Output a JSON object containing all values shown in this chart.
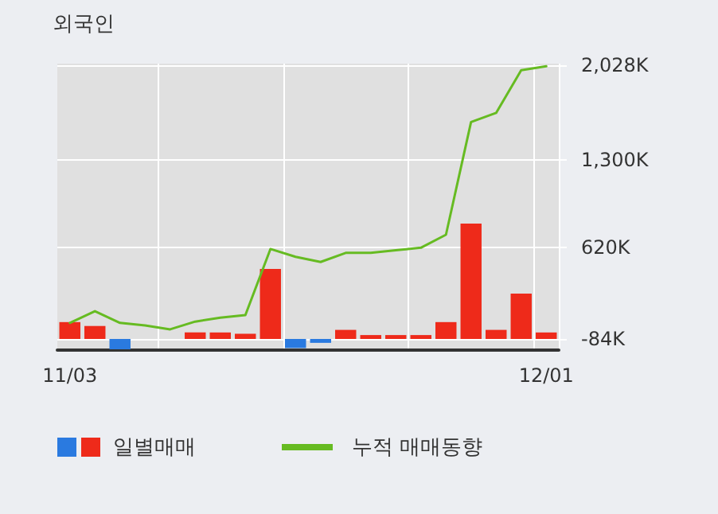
{
  "chart_data": {
    "type": "bar",
    "title": "외국인",
    "categories": [
      "11/03",
      null,
      null,
      null,
      null,
      null,
      null,
      null,
      null,
      null,
      null,
      null,
      null,
      null,
      null,
      null,
      null,
      null,
      null,
      "12/01"
    ],
    "series": [
      {
        "name": "일별매매",
        "colors": [
          "#ee2a1a",
          "#ee2a1a",
          "#2a7ae0",
          "#ee2a1a",
          "#ee2a1a",
          "#ee2a1a",
          "#ee2a1a",
          "#ee2a1a",
          "#ee2a1a",
          "#2a7ae0",
          "#2a7ae0",
          "#ee2a1a",
          "#ee2a1a",
          "#ee2a1a",
          "#ee2a1a",
          "#ee2a1a",
          "#ee2a1a",
          "#ee2a1a",
          "#ee2a1a",
          "#ee2a1a"
        ],
        "base": [
          -84,
          -84,
          -84,
          null,
          null,
          -84,
          -84,
          -84,
          -84,
          -84,
          -84,
          -84,
          -84,
          -84,
          -84,
          -84,
          -84,
          -84,
          -84,
          -84
        ],
        "values": [
          130,
          100,
          -80,
          null,
          null,
          50,
          50,
          40,
          540,
          -70,
          -30,
          70,
          30,
          30,
          30,
          130,
          890,
          70,
          350,
          50
        ]
      },
      {
        "name": "누적 매매동향",
        "type": "line",
        "color": "#66bb22",
        "values": [
          40,
          130,
          40,
          20,
          -10,
          50,
          80,
          100,
          610,
          550,
          510,
          580,
          580,
          600,
          620,
          720,
          1590,
          1660,
          1990,
          2020
        ]
      }
    ],
    "ylim": [
      -170,
      2040
    ],
    "yticks": [
      {
        "value": -84,
        "label": "-84K"
      },
      {
        "value": 620,
        "label": "620K"
      },
      {
        "value": 1300,
        "label": "1,300K"
      },
      {
        "value": 2028,
        "label": "2,028K"
      }
    ],
    "grid": true,
    "legend": "bottom",
    "marker": "none",
    "line_style": "solid"
  }
}
